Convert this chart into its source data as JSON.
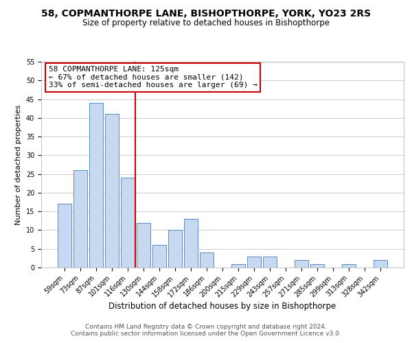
{
  "title": "58, COPMANTHORPE LANE, BISHOPTHORPE, YORK, YO23 2RS",
  "subtitle": "Size of property relative to detached houses in Bishopthorpe",
  "xlabel": "Distribution of detached houses by size in Bishopthorpe",
  "ylabel": "Number of detached properties",
  "categories": [
    "59sqm",
    "73sqm",
    "87sqm",
    "101sqm",
    "116sqm",
    "130sqm",
    "144sqm",
    "158sqm",
    "172sqm",
    "186sqm",
    "200sqm",
    "215sqm",
    "229sqm",
    "243sqm",
    "257sqm",
    "271sqm",
    "285sqm",
    "299sqm",
    "313sqm",
    "328sqm",
    "342sqm"
  ],
  "values": [
    17,
    26,
    44,
    41,
    24,
    12,
    6,
    10,
    13,
    4,
    0,
    1,
    3,
    3,
    0,
    2,
    1,
    0,
    1,
    0,
    2
  ],
  "bar_color": "#c6d9f0",
  "bar_edge_color": "#5a8bbf",
  "vline_color": "#cc0000",
  "vline_x": 4.5,
  "annotation_lines": [
    "58 COPMANTHORPE LANE: 125sqm",
    "← 67% of detached houses are smaller (142)",
    "33% of semi-detached houses are larger (69) →"
  ],
  "annotation_box_color": "#ffffff",
  "annotation_box_edge_color": "#cc0000",
  "ylim": [
    0,
    55
  ],
  "yticks": [
    0,
    5,
    10,
    15,
    20,
    25,
    30,
    35,
    40,
    45,
    50,
    55
  ],
  "footer1": "Contains HM Land Registry data © Crown copyright and database right 2024.",
  "footer2": "Contains public sector information licensed under the Open Government Licence v3.0.",
  "background_color": "#ffffff",
  "grid_color": "#cccccc",
  "title_fontsize": 10,
  "subtitle_fontsize": 8.5,
  "xlabel_fontsize": 8.5,
  "ylabel_fontsize": 8,
  "tick_fontsize": 7,
  "annotation_fontsize": 8,
  "footer_fontsize": 6.5
}
